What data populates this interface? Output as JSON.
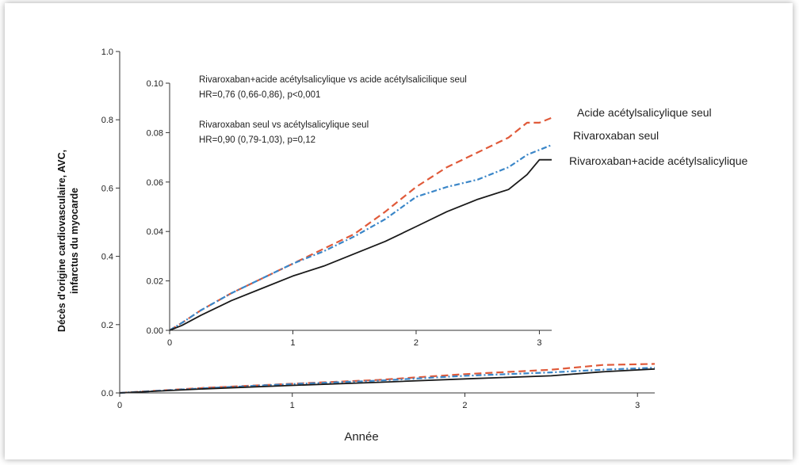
{
  "colors": {
    "aspirin": "#e05a3a",
    "riva": "#3a86c8",
    "combo": "#1a1a1a",
    "axis": "#333333"
  },
  "chart_data": [
    {
      "id": "main",
      "type": "line",
      "xlabel": "Année",
      "ylabel_lines": [
        "Décès d'origine cardiovasculaire, AVC,",
        "infarctus du myocarde"
      ],
      "xlim": [
        0,
        3.1
      ],
      "ylim": [
        0,
        1.0
      ],
      "xticks": [
        0,
        1,
        2,
        3
      ],
      "xtick_labels": [
        "0",
        "1",
        "2",
        "3"
      ],
      "yticks": [
        0.0,
        0.2,
        0.4,
        0.6,
        0.8,
        1.0
      ],
      "ytick_labels": [
        "0.0",
        "0.2",
        "0.4",
        "0.6",
        "0.8",
        "1.0"
      ],
      "series": [
        {
          "key": "aspirin",
          "x": [
            0,
            0.5,
            1,
            1.5,
            2,
            2.5,
            2.8,
            3.1
          ],
          "y": [
            0,
            0.015,
            0.027,
            0.038,
            0.055,
            0.068,
            0.082,
            0.085
          ]
        },
        {
          "key": "riva",
          "x": [
            0,
            0.5,
            1,
            1.5,
            2,
            2.5,
            2.8,
            3.1
          ],
          "y": [
            0,
            0.014,
            0.026,
            0.036,
            0.05,
            0.06,
            0.068,
            0.074
          ]
        },
        {
          "key": "combo",
          "x": [
            0,
            0.5,
            1,
            1.5,
            2,
            2.5,
            2.8,
            3.1
          ],
          "y": [
            0,
            0.012,
            0.022,
            0.031,
            0.041,
            0.05,
            0.062,
            0.07
          ]
        }
      ]
    },
    {
      "id": "inset",
      "type": "line",
      "xlim": [
        0,
        3.1
      ],
      "ylim": [
        0,
        0.1
      ],
      "xticks": [
        0,
        1,
        2,
        3
      ],
      "xtick_labels": [
        "0",
        "1",
        "2",
        "3"
      ],
      "yticks": [
        0.0,
        0.02,
        0.04,
        0.06,
        0.08,
        0.1
      ],
      "ytick_labels": [
        "0.00",
        "0.02",
        "0.04",
        "0.06",
        "0.08",
        "0.10"
      ],
      "series": [
        {
          "key": "aspirin",
          "name": "Acide acétylsalicylique seul",
          "x": [
            0,
            0.1,
            0.25,
            0.5,
            0.75,
            1,
            1.25,
            1.5,
            1.75,
            2,
            2.25,
            2.5,
            2.75,
            2.9,
            3.0,
            3.1
          ],
          "y": [
            0,
            0.003,
            0.008,
            0.015,
            0.021,
            0.027,
            0.033,
            0.039,
            0.048,
            0.058,
            0.066,
            0.072,
            0.078,
            0.084,
            0.084,
            0.086
          ]
        },
        {
          "key": "riva",
          "name": "Rivaroxaban seul",
          "x": [
            0,
            0.1,
            0.25,
            0.5,
            0.75,
            1,
            1.25,
            1.5,
            1.75,
            2,
            2.25,
            2.5,
            2.75,
            2.9,
            3.0,
            3.1
          ],
          "y": [
            0,
            0.003,
            0.008,
            0.015,
            0.021,
            0.027,
            0.032,
            0.038,
            0.045,
            0.054,
            0.058,
            0.061,
            0.066,
            0.071,
            0.073,
            0.075
          ]
        },
        {
          "key": "combo",
          "name": "Rivaroxaban+acide acétylsalicylique",
          "x": [
            0,
            0.1,
            0.25,
            0.5,
            0.75,
            1,
            1.25,
            1.5,
            1.75,
            2,
            2.25,
            2.5,
            2.75,
            2.9,
            3.0,
            3.1
          ],
          "y": [
            0,
            0.002,
            0.006,
            0.012,
            0.017,
            0.022,
            0.026,
            0.031,
            0.036,
            0.042,
            0.048,
            0.053,
            0.057,
            0.063,
            0.069,
            0.069
          ]
        }
      ],
      "annotations": [
        "Rivaroxaban+acide acétylsalicylique vs acide acétylsalicilique seul",
        "HR=0,76 (0,66-0,86), p<0,001",
        "Rivaroxaban seul vs acétylsalicylique seul",
        "HR=0,90 (0,79-1,03), p=0,12"
      ]
    }
  ]
}
